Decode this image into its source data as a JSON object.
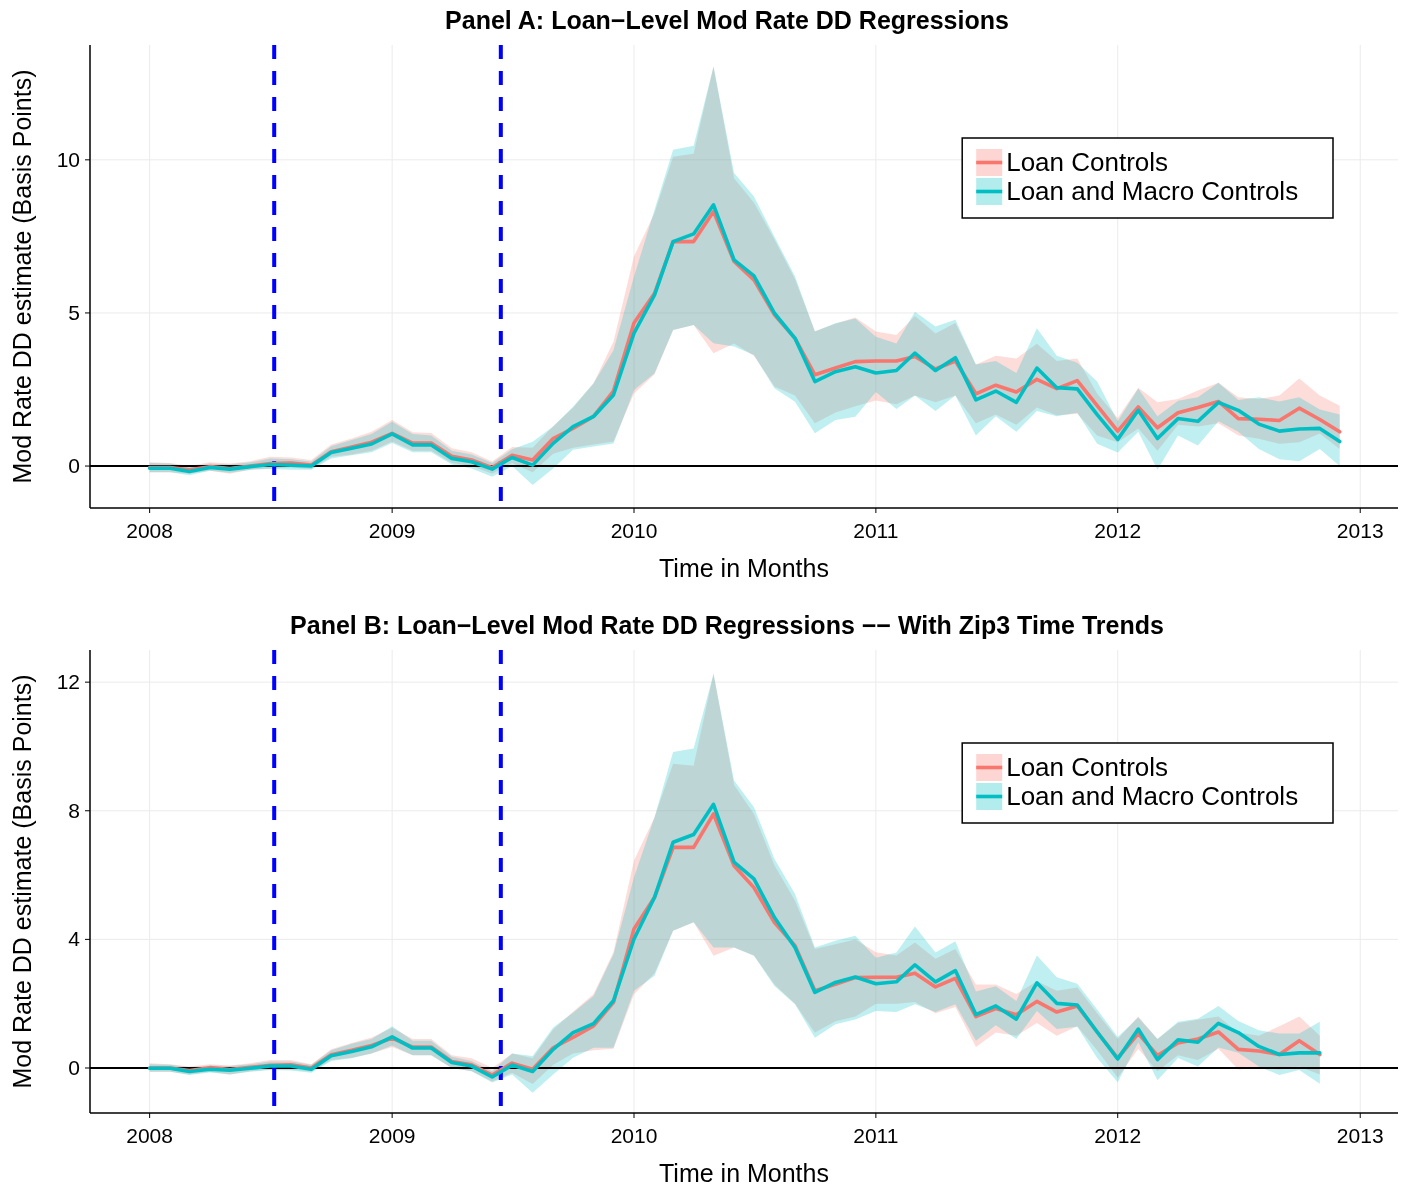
{
  "chart_data": [
    {
      "type": "line",
      "title": "Panel A: Loan−Level Mod Rate DD Regressions",
      "xlabel": "Time in Months",
      "ylabel": "Mod Rate DD estimate (Basis Points)",
      "x": [
        "2008-01",
        "2008-02",
        "2008-03",
        "2008-04",
        "2008-05",
        "2008-06",
        "2008-07",
        "2008-08",
        "2008-09",
        "2008-10",
        "2008-11",
        "2008-12",
        "2009-01",
        "2009-02",
        "2009-03",
        "2009-04",
        "2009-05",
        "2009-06",
        "2009-07",
        "2009-08",
        "2009-09",
        "2009-10",
        "2009-11",
        "2009-12",
        "2010-01",
        "2010-02",
        "2010-03",
        "2010-04",
        "2010-05",
        "2010-06",
        "2010-07",
        "2010-08",
        "2010-09",
        "2010-10",
        "2010-11",
        "2010-12",
        "2011-01",
        "2011-02",
        "2011-03",
        "2011-04",
        "2011-05",
        "2011-06",
        "2011-07",
        "2011-08",
        "2011-09",
        "2011-10",
        "2011-11",
        "2011-12",
        "2012-01",
        "2012-02",
        "2012-03",
        "2012-04",
        "2012-05",
        "2012-06",
        "2012-07",
        "2012-08",
        "2012-09",
        "2012-10",
        "2012-11",
        "2012-12"
      ],
      "series": [
        {
          "name": "Loan Controls",
          "color": "#f8766d",
          "values": [
            -0.05,
            -0.05,
            -0.12,
            -0.02,
            -0.08,
            0.0,
            0.08,
            0.1,
            0.03,
            0.47,
            0.62,
            0.78,
            1.07,
            0.75,
            0.75,
            0.32,
            0.2,
            -0.05,
            0.35,
            0.2,
            0.9,
            1.23,
            1.62,
            2.45,
            4.67,
            5.64,
            7.33,
            7.33,
            8.31,
            6.68,
            6.08,
            4.94,
            4.17,
            2.98,
            3.2,
            3.41,
            3.43,
            3.43,
            3.58,
            3.17,
            3.43,
            2.36,
            2.64,
            2.42,
            2.83,
            2.53,
            2.79,
            1.97,
            1.14,
            1.93,
            1.25,
            1.74,
            1.91,
            2.11,
            1.55,
            1.53,
            1.49,
            1.89,
            1.52,
            1.12
          ],
          "upper": [
            0.12,
            0.1,
            0.0,
            0.12,
            0.08,
            0.16,
            0.3,
            0.28,
            0.2,
            0.7,
            0.9,
            1.12,
            1.5,
            1.1,
            1.08,
            0.58,
            0.45,
            0.15,
            0.62,
            0.6,
            1.3,
            1.9,
            2.7,
            4.06,
            6.85,
            8.26,
            10.1,
            10.2,
            13.05,
            9.4,
            8.6,
            7.4,
            6.1,
            4.4,
            4.65,
            4.85,
            4.39,
            4.28,
            4.9,
            4.33,
            4.67,
            3.32,
            3.6,
            3.51,
            3.99,
            3.43,
            3.51,
            2.36,
            1.57,
            2.56,
            2.08,
            2.19,
            2.47,
            2.72,
            2.25,
            2.19,
            2.3,
            2.86,
            2.3,
            1.97
          ],
          "lower": [
            -0.2,
            -0.2,
            -0.25,
            -0.15,
            -0.25,
            -0.12,
            -0.08,
            -0.05,
            -0.1,
            0.3,
            0.38,
            0.5,
            0.8,
            0.5,
            0.5,
            0.1,
            0.0,
            -0.25,
            0.1,
            -0.2,
            0.4,
            0.6,
            0.7,
            0.8,
            2.37,
            3.0,
            4.44,
            4.61,
            3.68,
            4.0,
            3.6,
            2.6,
            2.3,
            1.4,
            1.75,
            1.95,
            2.14,
            2.02,
            2.3,
            2.08,
            2.3,
            1.4,
            1.68,
            1.35,
            1.91,
            1.66,
            1.71,
            1.0,
            0.78,
            1.23,
            0.5,
            1.35,
            1.29,
            1.4,
            1.0,
            0.89,
            0.73,
            0.78,
            1.06,
            0.56
          ]
        },
        {
          "name": "Loan and Macro Controls",
          "color": "#00bfc4",
          "values": [
            -0.07,
            -0.07,
            -0.18,
            -0.05,
            -0.1,
            -0.02,
            0.05,
            0.03,
            0.0,
            0.44,
            0.58,
            0.72,
            1.05,
            0.69,
            0.69,
            0.25,
            0.14,
            -0.1,
            0.28,
            0.03,
            0.74,
            1.29,
            1.62,
            2.32,
            4.34,
            5.59,
            7.33,
            7.58,
            8.53,
            6.73,
            6.21,
            4.99,
            4.17,
            2.76,
            3.08,
            3.24,
            3.04,
            3.12,
            3.69,
            3.12,
            3.54,
            2.16,
            2.45,
            2.08,
            3.2,
            2.56,
            2.52,
            1.68,
            0.87,
            1.82,
            0.9,
            1.55,
            1.46,
            2.08,
            1.82,
            1.37,
            1.14,
            1.21,
            1.23,
            0.8
          ],
          "upper": [
            0.1,
            0.08,
            -0.05,
            0.08,
            0.05,
            0.12,
            0.25,
            0.22,
            0.15,
            0.65,
            0.85,
            1.05,
            1.45,
            1.05,
            1.0,
            0.5,
            0.38,
            0.1,
            0.55,
            0.79,
            1.29,
            1.94,
            2.7,
            3.78,
            6.19,
            8.37,
            10.33,
            10.46,
            13.05,
            9.57,
            8.8,
            7.49,
            6.19,
            4.39,
            4.66,
            4.82,
            4.22,
            4.0,
            5.04,
            4.56,
            4.78,
            3.32,
            3.43,
            3.04,
            4.5,
            3.6,
            3.37,
            2.76,
            1.46,
            2.53,
            1.63,
            2.13,
            2.25,
            2.72,
            2.16,
            2.25,
            2.11,
            2.25,
            1.85,
            1.68
          ],
          "lower": [
            -0.2,
            -0.2,
            -0.3,
            -0.15,
            -0.22,
            -0.12,
            -0.1,
            -0.12,
            -0.12,
            0.25,
            0.35,
            0.45,
            0.75,
            0.45,
            0.45,
            0.05,
            -0.08,
            -0.35,
            0.0,
            -0.62,
            -0.08,
            0.53,
            0.64,
            0.74,
            2.48,
            3.03,
            4.44,
            4.61,
            4.01,
            3.9,
            3.63,
            2.54,
            2.1,
            1.07,
            1.5,
            1.61,
            2.42,
            1.86,
            2.3,
            1.8,
            2.3,
            1.0,
            1.63,
            1.12,
            1.8,
            1.63,
            1.74,
            0.73,
            0.44,
            1.12,
            -0.12,
            1.0,
            0.67,
            1.46,
            1.12,
            0.56,
            0.22,
            0.16,
            0.56,
            0.0
          ]
        }
      ],
      "xlim": [
        "2007-10-03",
        "2013-02-27"
      ],
      "xticks": [
        "2008",
        "2009",
        "2010",
        "2011",
        "2012",
        "2013"
      ],
      "ylim": [
        -1.37,
        13.75
      ],
      "yticks": [
        0,
        5,
        10
      ],
      "grid": true,
      "legend": "top right",
      "ref_lines": [
        {
          "axis": "y",
          "value": 0,
          "color": "#000000",
          "line_style": "solid"
        },
        {
          "axis": "x",
          "value": "2008-07-07",
          "color": "#0000ff",
          "line_style": "dashed"
        },
        {
          "axis": "x",
          "value": "2009-06-14",
          "color": "#0000ff",
          "line_style": "dashed"
        }
      ]
    },
    {
      "type": "line",
      "title": "Panel B: Loan−Level Mod Rate DD Regressions −− With Zip3 Time Trends",
      "xlabel": "Time in Months",
      "ylabel": "Mod Rate DD estimate (Basis Points)",
      "x": [
        "2008-01",
        "2008-02",
        "2008-03",
        "2008-04",
        "2008-05",
        "2008-06",
        "2008-07",
        "2008-08",
        "2008-09",
        "2008-10",
        "2008-11",
        "2008-12",
        "2009-01",
        "2009-02",
        "2009-03",
        "2009-04",
        "2009-05",
        "2009-06",
        "2009-07",
        "2009-08",
        "2009-09",
        "2009-10",
        "2009-11",
        "2009-12",
        "2010-01",
        "2010-02",
        "2010-03",
        "2010-04",
        "2010-05",
        "2010-06",
        "2010-07",
        "2010-08",
        "2010-09",
        "2010-10",
        "2010-11",
        "2010-12",
        "2011-01",
        "2011-02",
        "2011-03",
        "2011-04",
        "2011-05",
        "2011-06",
        "2011-07",
        "2011-08",
        "2011-09",
        "2011-10",
        "2011-11",
        "2011-12",
        "2012-01",
        "2012-02",
        "2012-03",
        "2012-04",
        "2012-05",
        "2012-06",
        "2012-07",
        "2012-08",
        "2012-09",
        "2012-10",
        "2012-11"
      ],
      "series": [
        {
          "name": "Loan Controls",
          "color": "#f8766d",
          "values": [
            0.0,
            0.0,
            -0.08,
            0.01,
            -0.05,
            0.02,
            0.08,
            0.1,
            0.0,
            0.41,
            0.55,
            0.7,
            0.93,
            0.65,
            0.65,
            0.2,
            0.1,
            -0.22,
            0.15,
            -0.04,
            0.63,
            0.95,
            1.31,
            2.04,
            4.32,
            5.31,
            6.86,
            6.86,
            7.9,
            6.29,
            5.61,
            4.52,
            3.8,
            2.4,
            2.6,
            2.81,
            2.82,
            2.82,
            2.95,
            2.52,
            2.79,
            1.6,
            1.85,
            1.66,
            2.07,
            1.74,
            1.93,
            1.12,
            0.31,
            1.07,
            0.39,
            0.78,
            0.9,
            1.12,
            0.58,
            0.53,
            0.42,
            0.85,
            0.42
          ],
          "upper": [
            0.15,
            0.12,
            0.05,
            0.12,
            0.08,
            0.15,
            0.25,
            0.25,
            0.12,
            0.58,
            0.78,
            0.95,
            1.25,
            0.9,
            0.9,
            0.4,
            0.3,
            0.0,
            0.45,
            0.3,
            1.2,
            1.75,
            2.3,
            3.6,
            6.45,
            7.8,
            9.46,
            9.4,
            12.26,
            8.8,
            7.9,
            6.3,
            5.2,
            3.7,
            3.85,
            4.0,
            3.6,
            3.5,
            3.9,
            3.4,
            3.7,
            2.6,
            2.6,
            2.3,
            2.7,
            2.4,
            2.5,
            1.7,
            0.9,
            1.6,
            0.9,
            1.4,
            1.5,
            1.6,
            1.1,
            1.0,
            1.3,
            1.6,
            1.0
          ],
          "lower": [
            -0.12,
            -0.12,
            -0.2,
            -0.12,
            -0.2,
            -0.1,
            -0.05,
            -0.05,
            -0.12,
            0.25,
            0.32,
            0.45,
            0.65,
            0.4,
            0.4,
            0.0,
            -0.1,
            -0.42,
            -0.15,
            -0.5,
            0.1,
            0.45,
            0.55,
            0.6,
            2.29,
            2.95,
            4.27,
            4.53,
            3.49,
            3.75,
            3.5,
            2.6,
            2.0,
            1.1,
            1.45,
            1.6,
            2.0,
            2.0,
            2.05,
            1.7,
            1.9,
            0.65,
            1.1,
            1.0,
            1.4,
            1.0,
            1.3,
            0.55,
            -0.3,
            0.6,
            -0.1,
            0.4,
            0.25,
            0.6,
            -0.05,
            0.0,
            -0.05,
            0.05,
            -0.2
          ]
        },
        {
          "name": "Loan and Macro Controls",
          "color": "#00bfc4",
          "values": [
            -0.01,
            -0.01,
            -0.11,
            -0.04,
            -0.07,
            -0.01,
            0.06,
            0.06,
            -0.04,
            0.38,
            0.51,
            0.66,
            0.97,
            0.62,
            0.62,
            0.17,
            0.06,
            -0.28,
            0.09,
            -0.11,
            0.58,
            1.1,
            1.38,
            2.09,
            4.01,
            5.31,
            7.02,
            7.26,
            8.2,
            6.4,
            5.88,
            4.68,
            3.75,
            2.35,
            2.66,
            2.83,
            2.62,
            2.68,
            3.21,
            2.68,
            3.03,
            1.66,
            1.93,
            1.52,
            2.65,
            2.01,
            1.96,
            1.12,
            0.28,
            1.21,
            0.26,
            0.88,
            0.8,
            1.39,
            1.1,
            0.67,
            0.42,
            0.47,
            0.47
          ],
          "upper": [
            0.12,
            0.1,
            0.02,
            0.08,
            0.06,
            0.12,
            0.2,
            0.2,
            0.1,
            0.55,
            0.75,
            0.9,
            1.3,
            0.85,
            0.85,
            0.35,
            0.22,
            -0.1,
            0.45,
            0.37,
            1.26,
            1.72,
            2.24,
            3.54,
            5.93,
            7.8,
            9.83,
            9.94,
            12.26,
            8.94,
            8.11,
            6.5,
            5.41,
            3.75,
            3.96,
            4.11,
            3.43,
            3.59,
            4.4,
            3.59,
            3.94,
            2.38,
            2.54,
            2.08,
            3.5,
            2.82,
            2.62,
            1.82,
            0.96,
            1.57,
            0.9,
            1.44,
            1.53,
            1.93,
            1.46,
            1.17,
            1.07,
            1.07,
            1.44
          ],
          "lower": [
            -0.12,
            -0.12,
            -0.22,
            -0.14,
            -0.2,
            -0.12,
            -0.06,
            -0.08,
            -0.15,
            0.22,
            0.3,
            0.45,
            0.7,
            0.4,
            0.4,
            0.0,
            -0.1,
            -0.45,
            -0.2,
            -0.77,
            -0.2,
            0.32,
            0.63,
            0.63,
            2.4,
            2.87,
            4.27,
            4.53,
            3.75,
            3.75,
            3.49,
            2.55,
            1.98,
            0.94,
            1.36,
            1.51,
            1.77,
            1.74,
            1.98,
            1.74,
            1.98,
            0.85,
            1.33,
            0.9,
            1.77,
            1.21,
            1.28,
            0.31,
            -0.44,
            0.8,
            -0.38,
            0.31,
            0.05,
            0.64,
            0.47,
            0.05,
            -0.22,
            -0.06,
            -0.49
          ]
        }
      ],
      "xlim": [
        "2007-10-03",
        "2013-02-27"
      ],
      "xticks": [
        "2008",
        "2009",
        "2010",
        "2011",
        "2012",
        "2013"
      ],
      "ylim": [
        -1.4,
        13.0
      ],
      "yticks": [
        0,
        4,
        8,
        12
      ],
      "grid": true,
      "legend": "top right",
      "ref_lines": [
        {
          "axis": "y",
          "value": 0,
          "color": "#000000",
          "line_style": "solid"
        },
        {
          "axis": "x",
          "value": "2008-07-07",
          "color": "#0000ff",
          "line_style": "dashed"
        },
        {
          "axis": "x",
          "value": "2009-06-14",
          "color": "#0000ff",
          "line_style": "dashed"
        }
      ]
    }
  ]
}
